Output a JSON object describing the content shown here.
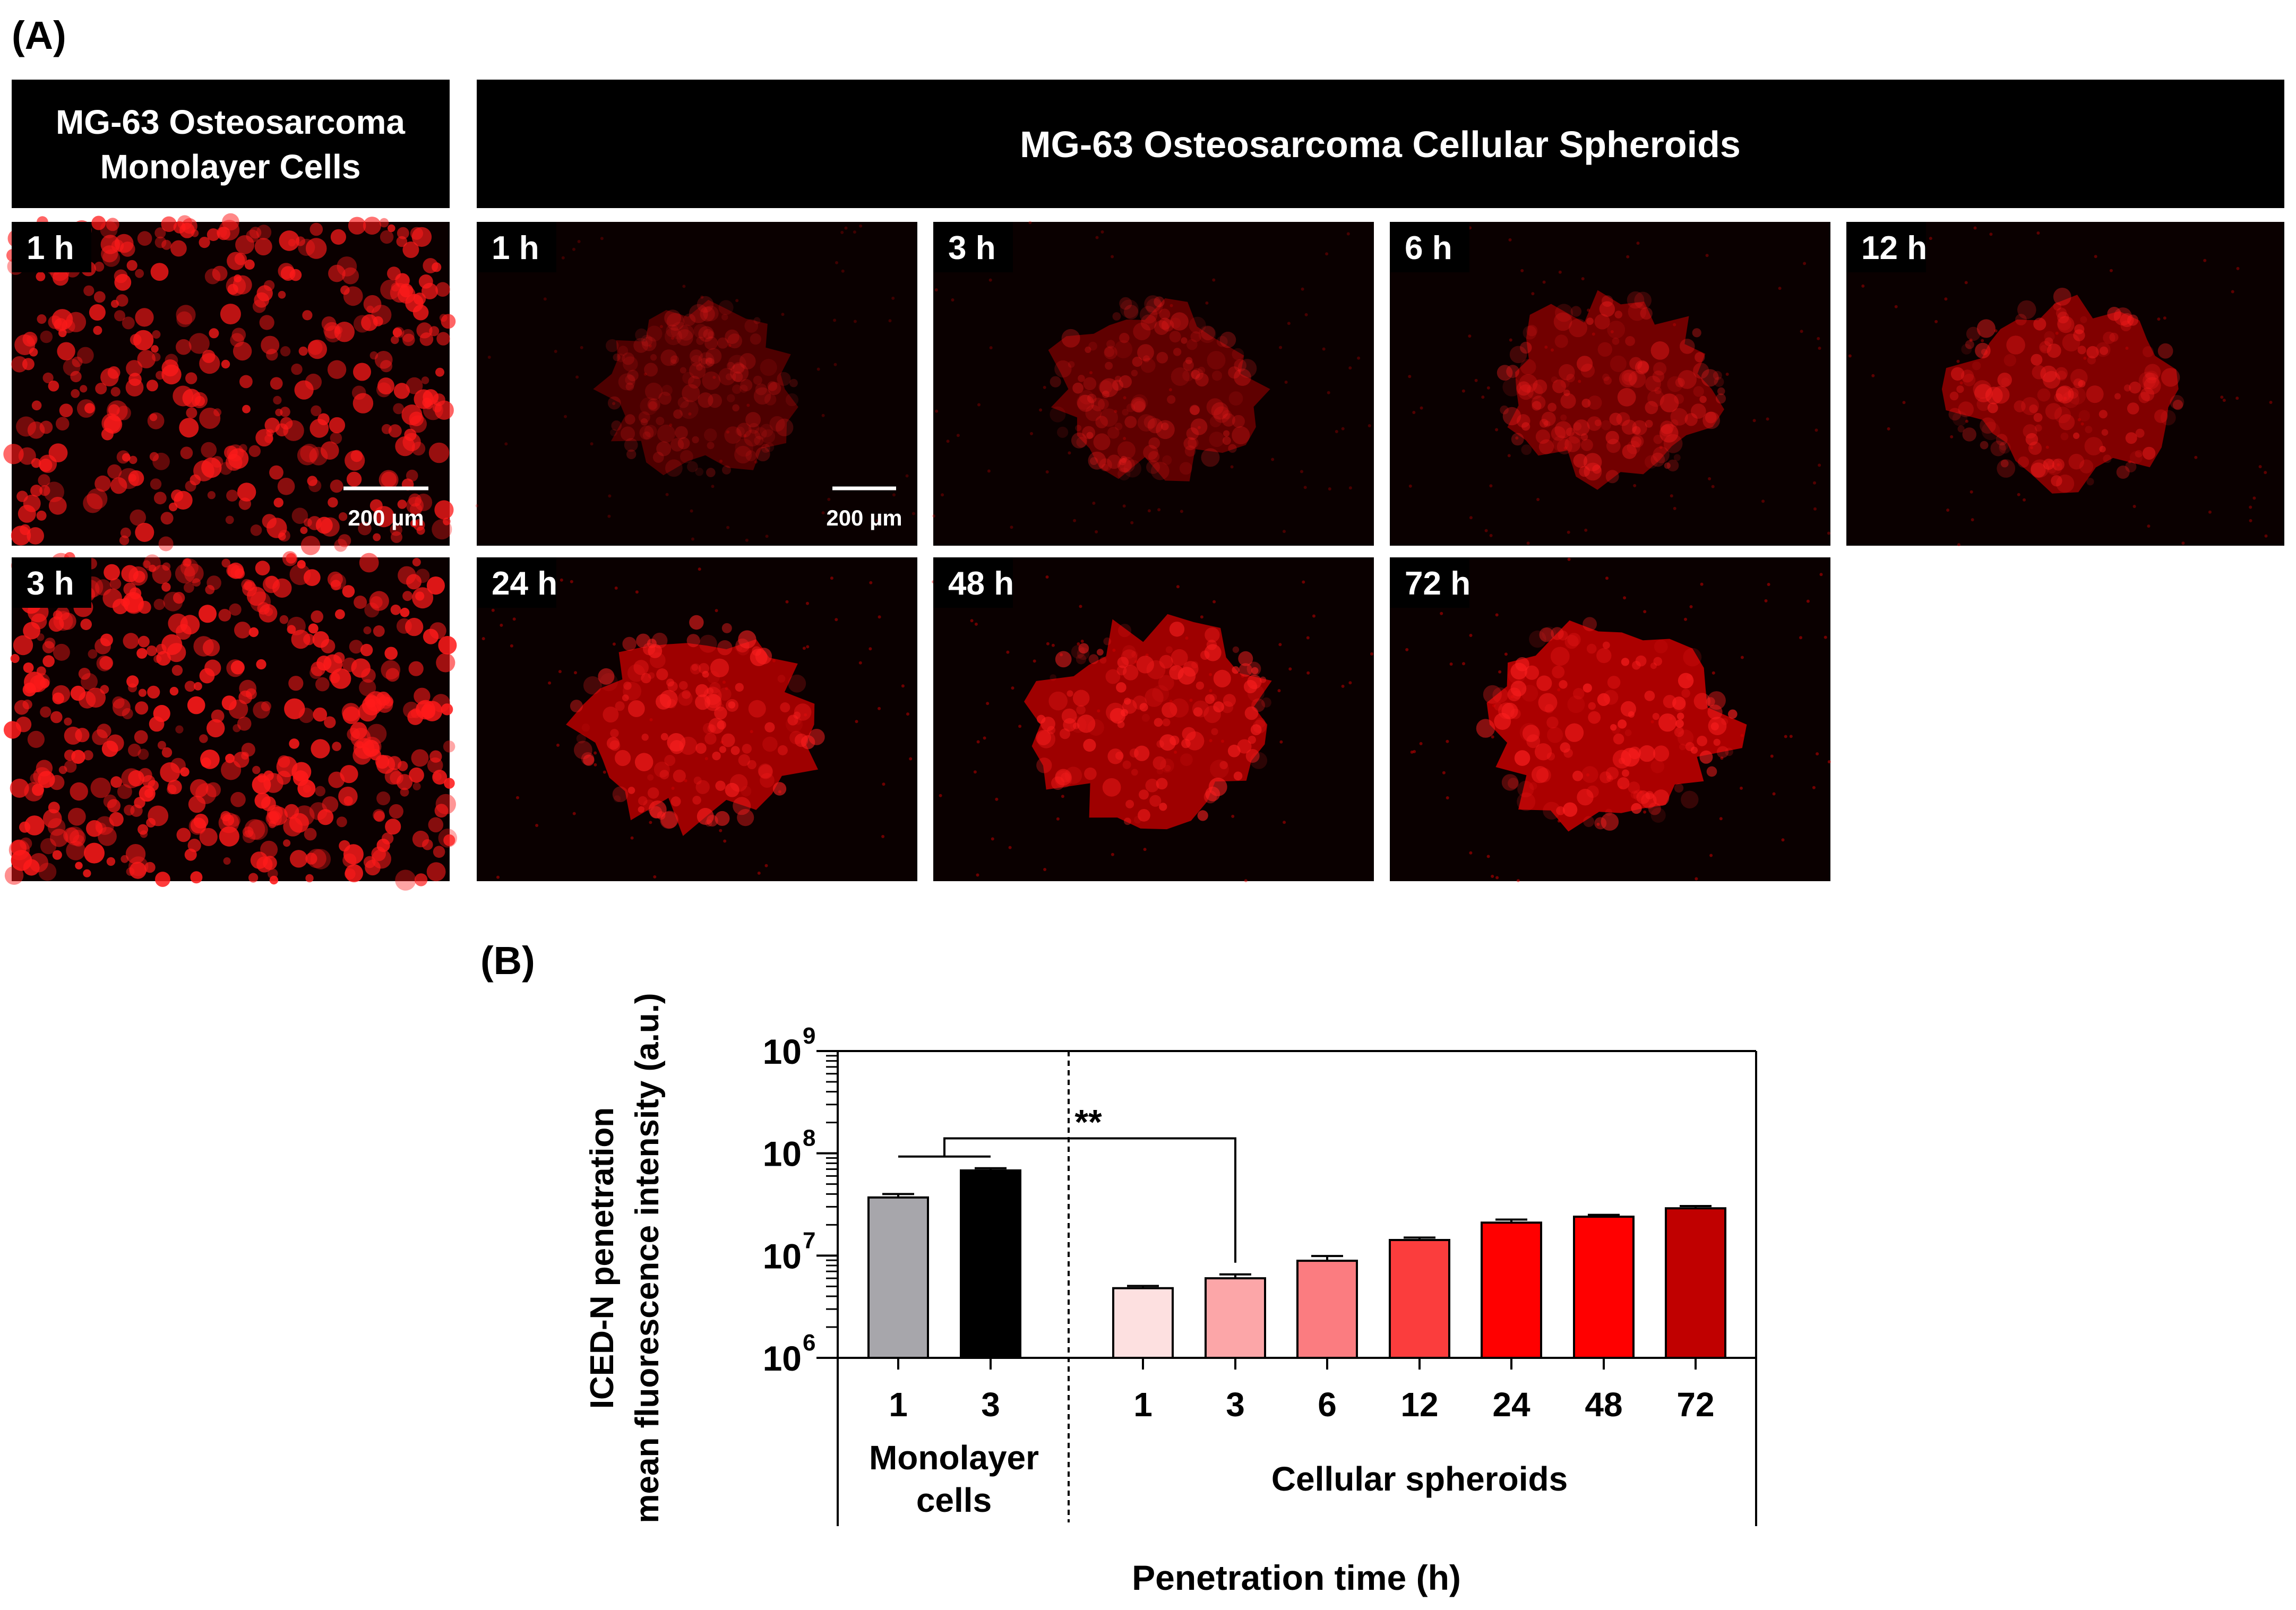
{
  "panel_a": {
    "label": "(A)",
    "monolayer_header": [
      "MG-63 Osteosarcoma",
      "Monolayer Cells"
    ],
    "spheroid_header": "MG-63 Osteosarcoma Cellular Spheroids",
    "monolayer_images": [
      {
        "time": "1 h",
        "intensity": 0.75,
        "scale_bar": "200 µm"
      },
      {
        "time": "3 h",
        "intensity": 0.9
      }
    ],
    "spheroid_images": [
      {
        "time": "1 h",
        "intensity": 0.22,
        "scale_bar": "200 µm"
      },
      {
        "time": "3 h",
        "intensity": 0.35
      },
      {
        "time": "6 h",
        "intensity": 0.5
      },
      {
        "time": "12 h",
        "intensity": 0.62
      },
      {
        "time": "24 h",
        "intensity": 0.85
      },
      {
        "time": "48 h",
        "intensity": 0.85
      },
      {
        "time": "72 h",
        "intensity": 0.95
      }
    ],
    "colors": {
      "fluorescence": "#ff1a1a",
      "background": "#000000",
      "header_bg": "#000000",
      "header_text": "#ffffff"
    }
  },
  "panel_b": {
    "label": "(B)"
  },
  "chart_data": {
    "type": "bar",
    "yscale": "log",
    "ylim": [
      1000000,
      1000000000
    ],
    "yticks": [
      {
        "value": 1000000,
        "base": "10",
        "exp": "6"
      },
      {
        "value": 10000000,
        "base": "10",
        "exp": "7"
      },
      {
        "value": 100000000,
        "base": "10",
        "exp": "8"
      },
      {
        "value": 1000000000,
        "base": "10",
        "exp": "9"
      }
    ],
    "ylabel": [
      "ICED-N penetration",
      "mean fluorescence intensity (a.u.)"
    ],
    "xlabel": "Penetration time (h)",
    "groups": [
      {
        "label": [
          "Monolayer",
          "cells"
        ],
        "categories": [
          "1",
          "3"
        ],
        "values": [
          37000000,
          68000000
        ],
        "errors": [
          3000000,
          3500000
        ],
        "colors": [
          "#a7a6ab",
          "#000000"
        ]
      },
      {
        "label": [
          "Cellular spheroids"
        ],
        "categories": [
          "1",
          "3",
          "6",
          "12",
          "24",
          "48",
          "72"
        ],
        "values": [
          4800000,
          6000000,
          8900000,
          14200000,
          21000000,
          24000000,
          29000000
        ],
        "errors": [
          250000,
          550000,
          1000000,
          800000,
          1500000,
          1000000,
          1500000
        ],
        "colors": [
          "#fde0e0",
          "#fca6a8",
          "#fb7c80",
          "#fb3d3d",
          "#ff0000",
          "#ff0000",
          "#c00000"
        ]
      }
    ],
    "significance": {
      "text": "**"
    }
  }
}
